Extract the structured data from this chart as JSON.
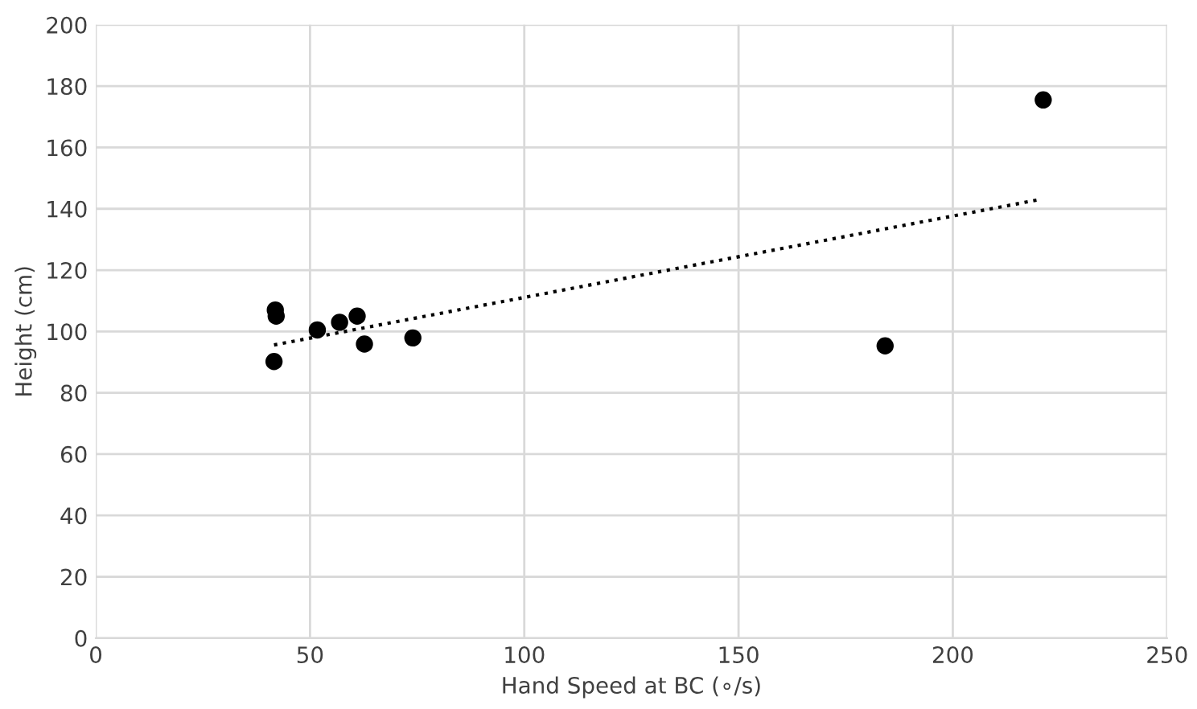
{
  "chart_data": {
    "type": "scatter",
    "xlabel": "Hand Speed at BC (∘/s)",
    "ylabel": "Height (cm)",
    "xlim": [
      0,
      250
    ],
    "xticks": [
      0,
      50,
      100,
      150,
      200,
      250
    ],
    "ylim": [
      0,
      200
    ],
    "yticks": [
      0,
      20,
      40,
      60,
      80,
      100,
      120,
      140,
      160,
      180,
      200
    ],
    "grid": true,
    "legend": false,
    "series": [
      {
        "color": "#000000",
        "marker": "circle",
        "x": [
          41.9,
          42.1,
          41.6,
          51.7,
          56.9,
          61.0,
          62.7,
          74.0,
          184.2,
          221.1
        ],
        "values": [
          107,
          105,
          90.2,
          100.5,
          103,
          105,
          95.9,
          97.9,
          95.3,
          175.5
        ]
      },
      {
        "type": "line",
        "color": "#000000",
        "line_style": "dotted",
        "marker": "none",
        "x": [
          41.6,
          220.2
        ],
        "values": [
          95.6,
          143
        ]
      }
    ]
  }
}
